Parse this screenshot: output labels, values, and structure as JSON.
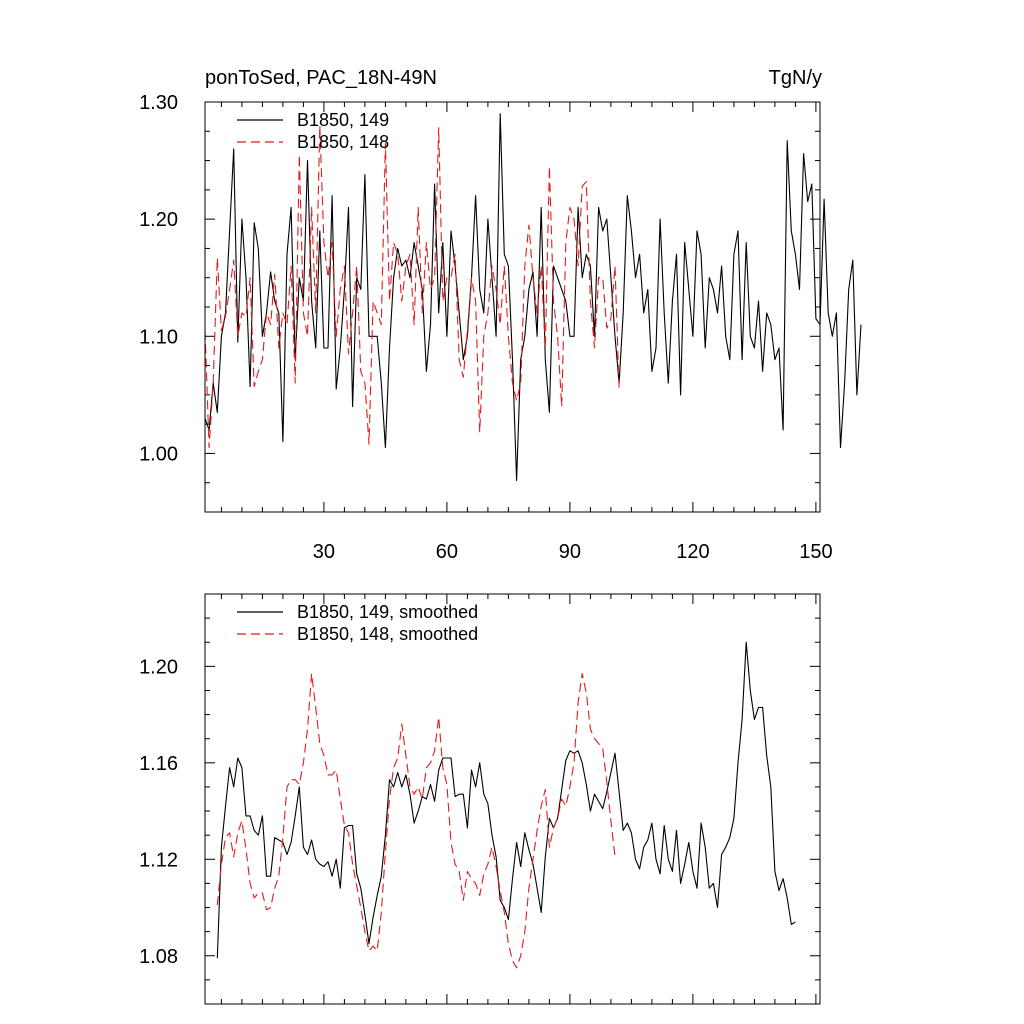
{
  "chart_data": [
    {
      "type": "line",
      "title": "ponToSed, PAC_18N-49N",
      "units": "TgN/y",
      "xlim": [
        1,
        151
      ],
      "ylim": [
        0.95,
        1.3
      ],
      "x_ticks": [
        30,
        60,
        90,
        120,
        150
      ],
      "x_tick_labels": [
        "30",
        "60",
        "90",
        "120",
        "150"
      ],
      "y_ticks": [
        1.0,
        1.1,
        1.2,
        1.3
      ],
      "y_tick_labels": [
        "1.00",
        "1.10",
        "1.20",
        "1.30"
      ],
      "legend_position": "top-left",
      "series": [
        {
          "name": "B1850, 149",
          "color": "#000000",
          "dash": "solid",
          "x_start": 1,
          "values": [
            1.03,
            1.02,
            1.06,
            1.035,
            1.1,
            1.12,
            1.19,
            1.26,
            1.095,
            1.2,
            1.15,
            1.057,
            1.197,
            1.175,
            1.1,
            1.12,
            1.155,
            1.13,
            1.12,
            1.01,
            1.17,
            1.21,
            1.08,
            1.15,
            1.13,
            1.25,
            1.13,
            1.09,
            1.19,
            1.09,
            1.09,
            1.22,
            1.055,
            1.09,
            1.14,
            1.21,
            1.04,
            1.15,
            1.14,
            1.238,
            1.1,
            1.1,
            1.1,
            1.06,
            1.005,
            1.09,
            1.15,
            1.175,
            1.16,
            1.165,
            1.15,
            1.18,
            1.16,
            1.14,
            1.07,
            1.11,
            1.23,
            1.12,
            1.18,
            1.1,
            1.19,
            1.16,
            1.12,
            1.08,
            1.1,
            1.15,
            1.22,
            1.14,
            1.12,
            1.2,
            1.15,
            1.1,
            1.29,
            1.17,
            1.16,
            1.08,
            0.977,
            1.08,
            1.1,
            1.14,
            1.155,
            1.1,
            1.21,
            1.08,
            1.035,
            1.16,
            1.15,
            1.14,
            1.13,
            1.1,
            1.1,
            1.21,
            1.15,
            1.17,
            1.16,
            1.1,
            1.21,
            1.19,
            1.2,
            1.15,
            1.1,
            1.06,
            1.12,
            1.22,
            1.19,
            1.15,
            1.17,
            1.12,
            1.14,
            1.07,
            1.09,
            1.2,
            1.12,
            1.06,
            1.13,
            1.17,
            1.05,
            1.18,
            1.14,
            1.1,
            1.19,
            1.17,
            1.09,
            1.15,
            1.14,
            1.12,
            1.16,
            1.1,
            1.08,
            1.17,
            1.19,
            1.08,
            1.18,
            1.1,
            1.09,
            1.13,
            1.07,
            1.12,
            1.11,
            1.08,
            1.09,
            1.02,
            1.267,
            1.19,
            1.17,
            1.14,
            1.256,
            1.215,
            1.23,
            1.115,
            1.11,
            1.217,
            1.12,
            1.1,
            1.12,
            1.005,
            1.06,
            1.14,
            1.165,
            1.05,
            1.11
          ]
        },
        {
          "name": "B1850, 148",
          "color": "#e41a1c",
          "dash": "dashed",
          "x_start": 1,
          "values": [
            1.105,
            1.005,
            1.06,
            1.167,
            1.105,
            1.117,
            1.14,
            1.165,
            1.1,
            1.12,
            1.117,
            1.15,
            1.057,
            1.07,
            1.08,
            1.12,
            1.11,
            1.153,
            1.09,
            1.12,
            1.11,
            1.16,
            1.06,
            1.255,
            1.12,
            1.1,
            1.21,
            1.12,
            1.28,
            1.18,
            1.15,
            1.18,
            1.1,
            1.14,
            1.16,
            1.085,
            1.12,
            1.16,
            1.07,
            1.06,
            1.008,
            1.13,
            1.12,
            1.11,
            1.265,
            1.13,
            1.18,
            1.17,
            1.13,
            1.16,
            1.17,
            1.11,
            1.21,
            1.12,
            1.18,
            1.14,
            1.15,
            1.278,
            1.13,
            1.15,
            1.15,
            1.17,
            1.08,
            1.065,
            1.105,
            1.15,
            1.13,
            1.018,
            1.1,
            1.12,
            1.16,
            1.14,
            1.11,
            1.16,
            1.1,
            1.06,
            1.045,
            1.06,
            1.16,
            1.195,
            1.15,
            1.12,
            1.16,
            1.09,
            1.245,
            1.13,
            1.1,
            1.04,
            1.18,
            1.21,
            1.2,
            1.16,
            1.228,
            1.232,
            1.13,
            1.09,
            1.15,
            1.15,
            1.107,
            1.115,
            1.16,
            1.055
          ]
        }
      ]
    },
    {
      "type": "line",
      "xlim": [
        1,
        151
      ],
      "ylim": [
        1.06,
        1.23
      ],
      "x_ticks": [
        30,
        60,
        90,
        120,
        150
      ],
      "y_ticks": [
        1.08,
        1.12,
        1.16,
        1.2
      ],
      "y_tick_labels": [
        "1.08",
        "1.12",
        "1.16",
        "1.20"
      ],
      "legend_position": "top-left",
      "series": [
        {
          "name": "B1850, 149, smoothed",
          "color": "#000000",
          "dash": "solid",
          "x_start": 4,
          "values": [
            1.079,
            1.125,
            1.142,
            1.158,
            1.15,
            1.162,
            1.158,
            1.138,
            1.138,
            1.132,
            1.13,
            1.138,
            1.113,
            1.113,
            1.129,
            1.128,
            1.127,
            1.122,
            1.127,
            1.138,
            1.15,
            1.125,
            1.122,
            1.128,
            1.12,
            1.118,
            1.117,
            1.119,
            1.113,
            1.12,
            1.108,
            1.133,
            1.134,
            1.134,
            1.114,
            1.108,
            1.097,
            1.085,
            1.096,
            1.105,
            1.113,
            1.13,
            1.153,
            1.15,
            1.156,
            1.15,
            1.155,
            1.147,
            1.135,
            1.14,
            1.146,
            1.145,
            1.151,
            1.144,
            1.157,
            1.162,
            1.162,
            1.162,
            1.146,
            1.147,
            1.147,
            1.133,
            1.157,
            1.15,
            1.16,
            1.147,
            1.143,
            1.13,
            1.121,
            1.103,
            1.1,
            1.095,
            1.112,
            1.127,
            1.117,
            1.131,
            1.124,
            1.118,
            1.108,
            1.098,
            1.121,
            1.137,
            1.133,
            1.137,
            1.149,
            1.161,
            1.165,
            1.164,
            1.165,
            1.16,
            1.151,
            1.14,
            1.147,
            1.144,
            1.141,
            1.148,
            1.156,
            1.164,
            1.148,
            1.132,
            1.135,
            1.131,
            1.12,
            1.116,
            1.125,
            1.128,
            1.135,
            1.12,
            1.114,
            1.134,
            1.12,
            1.115,
            1.132,
            1.11,
            1.118,
            1.127,
            1.115,
            1.108,
            1.135,
            1.125,
            1.108,
            1.11,
            1.1,
            1.122,
            1.125,
            1.129,
            1.137,
            1.16,
            1.178,
            1.21,
            1.19,
            1.178,
            1.183,
            1.183,
            1.163,
            1.15,
            1.115,
            1.107,
            1.112,
            1.104,
            1.093,
            1.094
          ]
        },
        {
          "name": "B1850, 148, smoothed",
          "color": "#e41a1c",
          "dash": "dashed",
          "x_start": 4,
          "values": [
            1.101,
            1.118,
            1.129,
            1.131,
            1.121,
            1.131,
            1.136,
            1.124,
            1.11,
            1.104,
            1.106,
            1.106,
            1.099,
            1.1,
            1.108,
            1.113,
            1.129,
            1.15,
            1.153,
            1.153,
            1.151,
            1.16,
            1.174,
            1.197,
            1.183,
            1.168,
            1.163,
            1.155,
            1.155,
            1.157,
            1.145,
            1.134,
            1.131,
            1.118,
            1.109,
            1.1,
            1.09,
            1.082,
            1.084,
            1.082,
            1.098,
            1.123,
            1.145,
            1.158,
            1.162,
            1.176,
            1.163,
            1.15,
            1.147,
            1.15,
            1.145,
            1.158,
            1.16,
            1.165,
            1.179,
            1.158,
            1.151,
            1.127,
            1.118,
            1.115,
            1.103,
            1.115,
            1.112,
            1.11,
            1.105,
            1.114,
            1.118,
            1.125,
            1.117,
            1.107,
            1.098,
            1.085,
            1.078,
            1.075,
            1.08,
            1.09,
            1.108,
            1.12,
            1.132,
            1.142,
            1.149,
            1.125,
            1.133,
            1.137,
            1.145,
            1.142,
            1.15,
            1.16,
            1.185,
            1.197,
            1.189,
            1.174,
            1.17,
            1.168,
            1.166,
            1.152,
            1.136,
            1.121
          ]
        }
      ]
    }
  ]
}
